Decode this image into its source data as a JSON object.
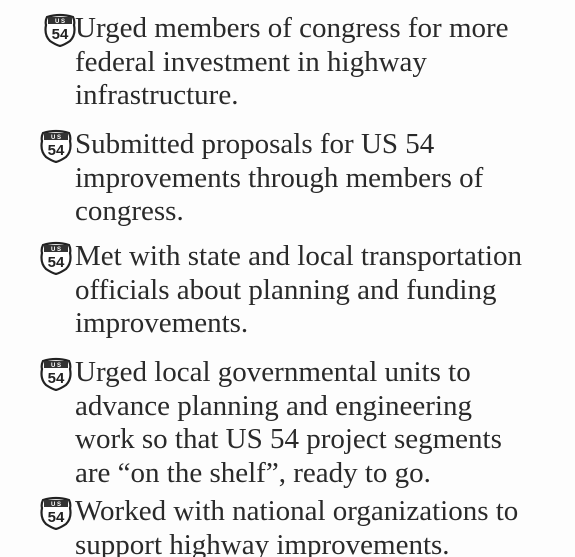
{
  "shield": {
    "top": "U S",
    "number": "54"
  },
  "items": [
    {
      "lines": [
        "Urged members of congress for more",
        "federal investment in highway",
        "infrastructure."
      ]
    },
    {
      "lines": [
        "Submitted proposals for US 54",
        "improvements through members of",
        "congress."
      ]
    },
    {
      "lines": [
        "Met with state and local transportation",
        "officials about planning and funding",
        "improvements."
      ]
    },
    {
      "lines": [
        "Urged local governmental units to",
        "advance planning and engineering",
        "work so that US 54 project segments",
        "are “on the shelf”, ready to go."
      ]
    },
    {
      "lines": [
        "Worked with national organizations to",
        "support highway improvements."
      ]
    }
  ]
}
